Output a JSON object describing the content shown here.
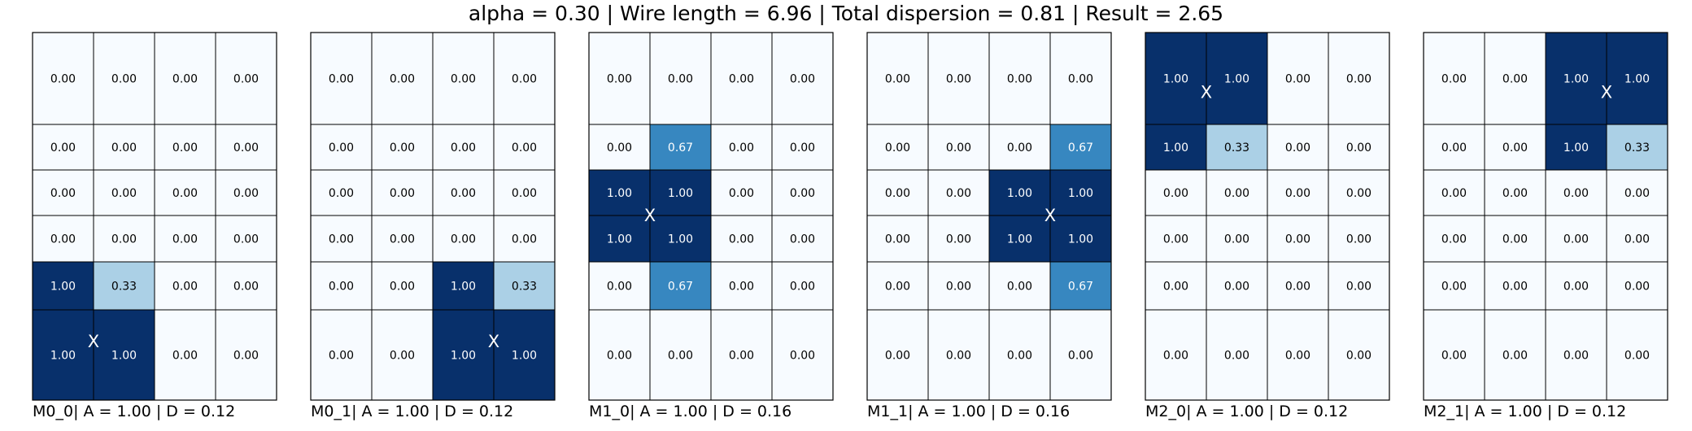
{
  "title": "alpha = 0.30 | Wire length = 6.96 | Total dispersion = 0.81 | Result = 2.65",
  "chart_data": [
    {
      "type": "heatmap",
      "caption": "M0_0| A = 1.00 | D = 0.12",
      "rows": 6,
      "cols": 4,
      "cells": [
        [
          "0.00",
          "0.00",
          "0.00",
          "0.00"
        ],
        [
          "0.00",
          "0.00",
          "0.00",
          "0.00"
        ],
        [
          "0.00",
          "0.00",
          "0.00",
          "0.00"
        ],
        [
          "0.00",
          "0.00",
          "0.00",
          "0.00"
        ],
        [
          "1.00",
          "0.33",
          "0.00",
          "0.00"
        ],
        [
          "1.00",
          "1.00",
          "0.00",
          "0.00"
        ]
      ],
      "marker": {
        "label": "X",
        "col": 1.0,
        "row": 5.35
      }
    },
    {
      "type": "heatmap",
      "caption": "M0_1| A = 1.00 | D = 0.12",
      "rows": 6,
      "cols": 4,
      "cells": [
        [
          "0.00",
          "0.00",
          "0.00",
          "0.00"
        ],
        [
          "0.00",
          "0.00",
          "0.00",
          "0.00"
        ],
        [
          "0.00",
          "0.00",
          "0.00",
          "0.00"
        ],
        [
          "0.00",
          "0.00",
          "0.00",
          "0.00"
        ],
        [
          "0.00",
          "0.00",
          "1.00",
          "0.33"
        ],
        [
          "0.00",
          "0.00",
          "1.00",
          "1.00"
        ]
      ],
      "marker": {
        "label": "X",
        "col": 3.0,
        "row": 5.35
      }
    },
    {
      "type": "heatmap",
      "caption": "M1_0| A = 1.00 | D = 0.16",
      "rows": 6,
      "cols": 4,
      "cells": [
        [
          "0.00",
          "0.00",
          "0.00",
          "0.00"
        ],
        [
          "0.00",
          "0.67",
          "0.00",
          "0.00"
        ],
        [
          "1.00",
          "1.00",
          "0.00",
          "0.00"
        ],
        [
          "1.00",
          "1.00",
          "0.00",
          "0.00"
        ],
        [
          "0.00",
          "0.67",
          "0.00",
          "0.00"
        ],
        [
          "0.00",
          "0.00",
          "0.00",
          "0.00"
        ]
      ],
      "marker": {
        "label": "X",
        "col": 1.0,
        "row": 3.0
      }
    },
    {
      "type": "heatmap",
      "caption": "M1_1| A = 1.00 | D = 0.16",
      "rows": 6,
      "cols": 4,
      "cells": [
        [
          "0.00",
          "0.00",
          "0.00",
          "0.00"
        ],
        [
          "0.00",
          "0.00",
          "0.00",
          "0.67"
        ],
        [
          "0.00",
          "0.00",
          "1.00",
          "1.00"
        ],
        [
          "0.00",
          "0.00",
          "1.00",
          "1.00"
        ],
        [
          "0.00",
          "0.00",
          "0.00",
          "0.67"
        ],
        [
          "0.00",
          "0.00",
          "0.00",
          "0.00"
        ]
      ],
      "marker": {
        "label": "X",
        "col": 3.0,
        "row": 3.0
      }
    },
    {
      "type": "heatmap",
      "caption": "M2_0| A = 1.00 | D = 0.12",
      "rows": 6,
      "cols": 4,
      "cells": [
        [
          "1.00",
          "1.00",
          "0.00",
          "0.00"
        ],
        [
          "1.00",
          "0.33",
          "0.00",
          "0.00"
        ],
        [
          "0.00",
          "0.00",
          "0.00",
          "0.00"
        ],
        [
          "0.00",
          "0.00",
          "0.00",
          "0.00"
        ],
        [
          "0.00",
          "0.00",
          "0.00",
          "0.00"
        ],
        [
          "0.00",
          "0.00",
          "0.00",
          "0.00"
        ]
      ],
      "marker": {
        "label": "X",
        "col": 1.0,
        "row": 0.65
      }
    },
    {
      "type": "heatmap",
      "caption": "M2_1| A = 1.00 | D = 0.12",
      "rows": 6,
      "cols": 4,
      "cells": [
        [
          "0.00",
          "0.00",
          "1.00",
          "1.00"
        ],
        [
          "0.00",
          "0.00",
          "1.00",
          "0.33"
        ],
        [
          "0.00",
          "0.00",
          "0.00",
          "0.00"
        ],
        [
          "0.00",
          "0.00",
          "0.00",
          "0.00"
        ],
        [
          "0.00",
          "0.00",
          "0.00",
          "0.00"
        ],
        [
          "0.00",
          "0.00",
          "0.00",
          "0.00"
        ]
      ],
      "marker": {
        "label": "X",
        "col": 3.0,
        "row": 0.65
      }
    }
  ],
  "colors": {
    "zero": "#f7fbff",
    "low": "#abd0e6",
    "mid": "#3787c0",
    "high": "#08306b",
    "grid": "#000000",
    "text_dark": "#000000",
    "text_light": "#ffffff"
  }
}
